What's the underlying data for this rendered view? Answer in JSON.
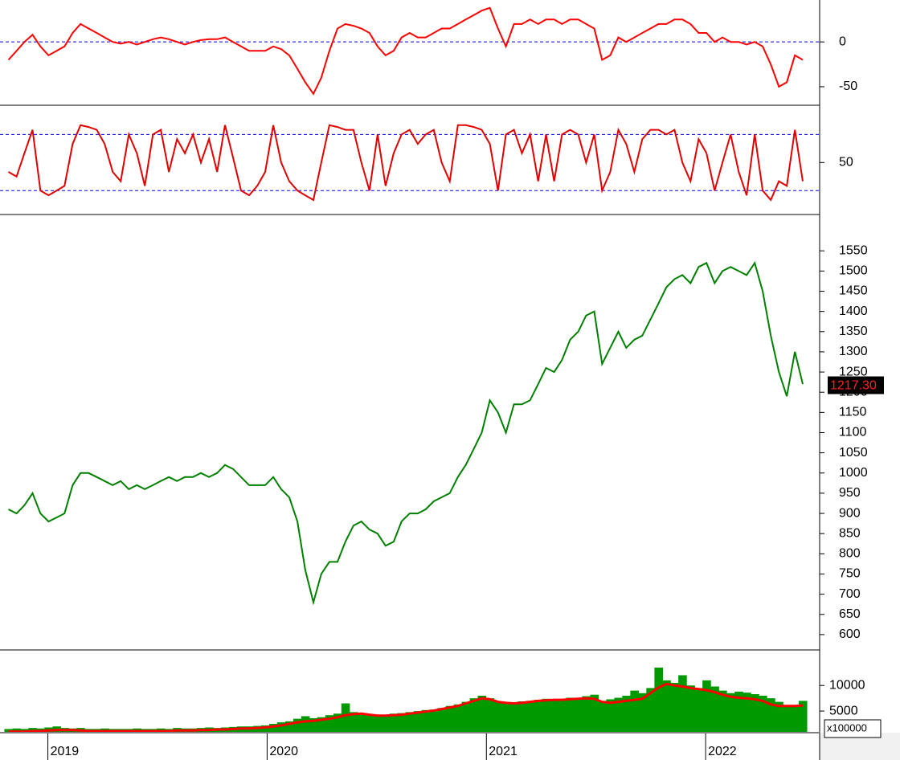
{
  "chart_data": [
    {
      "type": "line",
      "xlim": [
        2018.8,
        2022.52
      ],
      "ylim": [
        -68,
        45
      ],
      "yticks": [
        -50,
        0
      ],
      "hlines": [
        0
      ],
      "hline_color": "#0000ff",
      "x": [
        2018.82,
        2018.857,
        2018.893,
        2018.93,
        2018.966,
        2019.003,
        2019.04,
        2019.076,
        2019.113,
        2019.149,
        2019.186,
        2019.223,
        2019.259,
        2019.296,
        2019.332,
        2019.369,
        2019.406,
        2019.442,
        2019.479,
        2019.515,
        2019.552,
        2019.589,
        2019.625,
        2019.662,
        2019.698,
        2019.735,
        2019.772,
        2019.808,
        2019.845,
        2019.881,
        2019.918,
        2019.955,
        2019.991,
        2020.028,
        2020.064,
        2020.101,
        2020.138,
        2020.174,
        2020.211,
        2020.247,
        2020.284,
        2020.321,
        2020.357,
        2020.394,
        2020.43,
        2020.467,
        2020.504,
        2020.54,
        2020.577,
        2020.613,
        2020.65,
        2020.687,
        2020.723,
        2020.76,
        2020.796,
        2020.833,
        2020.87,
        2020.906,
        2020.943,
        2020.979,
        2021.016,
        2021.053,
        2021.089,
        2021.126,
        2021.162,
        2021.199,
        2021.236,
        2021.272,
        2021.309,
        2021.345,
        2021.382,
        2021.419,
        2021.455,
        2021.492,
        2021.528,
        2021.565,
        2021.602,
        2021.638,
        2021.675,
        2021.711,
        2021.748,
        2021.785,
        2021.821,
        2021.858,
        2021.894,
        2021.931,
        2021.968,
        2022.004,
        2022.041,
        2022.077,
        2022.114,
        2022.151,
        2022.187,
        2022.224,
        2022.26,
        2022.297,
        2022.334,
        2022.37,
        2022.407,
        2022.443
      ],
      "series": [
        {
          "color": "#ff0000",
          "values": [
            -20,
            -10,
            0,
            8,
            -5,
            -15,
            -10,
            -5,
            10,
            20,
            15,
            10,
            5,
            0,
            -2,
            0,
            -3,
            0,
            3,
            5,
            3,
            0,
            -3,
            0,
            2,
            3,
            3,
            5,
            0,
            -5,
            -10,
            -10,
            -10,
            -5,
            -8,
            -15,
            -30,
            -45,
            -58,
            -40,
            -10,
            15,
            20,
            18,
            15,
            10,
            -5,
            -15,
            -10,
            5,
            10,
            5,
            5,
            10,
            15,
            15,
            20,
            25,
            30,
            35,
            38,
            15,
            -5,
            20,
            20,
            25,
            20,
            25,
            25,
            20,
            25,
            25,
            20,
            15,
            -20,
            -15,
            5,
            0,
            5,
            10,
            15,
            20,
            20,
            25,
            25,
            20,
            10,
            10,
            0,
            5,
            0,
            0,
            -3,
            0,
            -5,
            -25,
            -50,
            -45,
            -15,
            -20
          ]
        }
      ]
    },
    {
      "type": "line",
      "xlim": [
        2018.8,
        2022.52
      ],
      "ylim": [
        -3,
        107
      ],
      "yticks": [
        50
      ],
      "hlines": [
        20,
        80
      ],
      "hline_color": "#0000ff",
      "x": [
        2018.82,
        2018.857,
        2018.893,
        2018.93,
        2018.966,
        2019.003,
        2019.04,
        2019.076,
        2019.113,
        2019.149,
        2019.186,
        2019.223,
        2019.259,
        2019.296,
        2019.332,
        2019.369,
        2019.406,
        2019.442,
        2019.479,
        2019.515,
        2019.552,
        2019.589,
        2019.625,
        2019.662,
        2019.698,
        2019.735,
        2019.772,
        2019.808,
        2019.845,
        2019.881,
        2019.918,
        2019.955,
        2019.991,
        2020.028,
        2020.064,
        2020.101,
        2020.138,
        2020.174,
        2020.211,
        2020.247,
        2020.284,
        2020.321,
        2020.357,
        2020.394,
        2020.43,
        2020.467,
        2020.504,
        2020.54,
        2020.577,
        2020.613,
        2020.65,
        2020.687,
        2020.723,
        2020.76,
        2020.796,
        2020.833,
        2020.87,
        2020.906,
        2020.943,
        2020.979,
        2021.016,
        2021.053,
        2021.089,
        2021.126,
        2021.162,
        2021.199,
        2021.236,
        2021.272,
        2021.309,
        2021.345,
        2021.382,
        2021.419,
        2021.455,
        2021.492,
        2021.528,
        2021.565,
        2021.602,
        2021.638,
        2021.675,
        2021.711,
        2021.748,
        2021.785,
        2021.821,
        2021.858,
        2021.894,
        2021.931,
        2021.968,
        2022.004,
        2022.041,
        2022.077,
        2022.114,
        2022.151,
        2022.187,
        2022.224,
        2022.26,
        2022.297,
        2022.334,
        2022.37,
        2022.407,
        2022.443
      ],
      "series": [
        {
          "color": "#e00000",
          "values": [
            40,
            35,
            60,
            85,
            20,
            15,
            20,
            25,
            70,
            90,
            88,
            85,
            70,
            40,
            30,
            80,
            60,
            25,
            80,
            85,
            40,
            75,
            60,
            80,
            50,
            75,
            40,
            90,
            55,
            20,
            15,
            25,
            40,
            90,
            50,
            30,
            20,
            15,
            10,
            50,
            90,
            88,
            85,
            85,
            50,
            20,
            80,
            25,
            60,
            80,
            85,
            70,
            80,
            85,
            50,
            30,
            90,
            90,
            88,
            85,
            70,
            20,
            80,
            85,
            60,
            80,
            30,
            80,
            30,
            80,
            85,
            80,
            50,
            80,
            20,
            40,
            85,
            70,
            40,
            75,
            85,
            85,
            80,
            85,
            50,
            30,
            75,
            60,
            20,
            50,
            80,
            40,
            15,
            80,
            20,
            10,
            30,
            25,
            85,
            30
          ]
        }
      ]
    },
    {
      "type": "line",
      "xlim": [
        2018.8,
        2022.52
      ],
      "ylim": [
        570,
        1630
      ],
      "yticks": [
        600,
        650,
        700,
        750,
        800,
        850,
        900,
        950,
        1000,
        1050,
        1100,
        1150,
        1200,
        1250,
        1300,
        1350,
        1400,
        1450,
        1500,
        1550
      ],
      "last_price": {
        "value": 1217.3,
        "label": "1217.30"
      },
      "x": [
        2018.82,
        2018.857,
        2018.893,
        2018.93,
        2018.966,
        2019.003,
        2019.04,
        2019.076,
        2019.113,
        2019.149,
        2019.186,
        2019.223,
        2019.259,
        2019.296,
        2019.332,
        2019.369,
        2019.406,
        2019.442,
        2019.479,
        2019.515,
        2019.552,
        2019.589,
        2019.625,
        2019.662,
        2019.698,
        2019.735,
        2019.772,
        2019.808,
        2019.845,
        2019.881,
        2019.918,
        2019.955,
        2019.991,
        2020.028,
        2020.064,
        2020.101,
        2020.138,
        2020.174,
        2020.211,
        2020.247,
        2020.284,
        2020.321,
        2020.357,
        2020.394,
        2020.43,
        2020.467,
        2020.504,
        2020.54,
        2020.577,
        2020.613,
        2020.65,
        2020.687,
        2020.723,
        2020.76,
        2020.796,
        2020.833,
        2020.87,
        2020.906,
        2020.943,
        2020.979,
        2021.016,
        2021.053,
        2021.089,
        2021.126,
        2021.162,
        2021.199,
        2021.236,
        2021.272,
        2021.309,
        2021.345,
        2021.382,
        2021.419,
        2021.455,
        2021.492,
        2021.528,
        2021.565,
        2021.602,
        2021.638,
        2021.675,
        2021.711,
        2021.748,
        2021.785,
        2021.821,
        2021.858,
        2021.894,
        2021.931,
        2021.968,
        2022.004,
        2022.041,
        2022.077,
        2022.114,
        2022.151,
        2022.187,
        2022.224,
        2022.26,
        2022.297,
        2022.334,
        2022.37,
        2022.407,
        2022.443
      ],
      "series": [
        {
          "color": "#008000",
          "values": [
            910,
            900,
            920,
            950,
            900,
            880,
            890,
            900,
            970,
            1000,
            1000,
            990,
            980,
            970,
            980,
            960,
            970,
            960,
            970,
            980,
            990,
            980,
            990,
            990,
            1000,
            990,
            1000,
            1020,
            1010,
            990,
            970,
            970,
            970,
            990,
            960,
            940,
            880,
            760,
            680,
            750,
            780,
            780,
            830,
            870,
            880,
            860,
            850,
            820,
            830,
            880,
            900,
            900,
            910,
            930,
            940,
            950,
            990,
            1020,
            1060,
            1100,
            1180,
            1150,
            1100,
            1170,
            1170,
            1180,
            1220,
            1260,
            1250,
            1280,
            1330,
            1350,
            1390,
            1400,
            1270,
            1310,
            1350,
            1310,
            1330,
            1340,
            1380,
            1420,
            1460,
            1480,
            1490,
            1470,
            1510,
            1520,
            1470,
            1500,
            1510,
            1500,
            1490,
            1520,
            1450,
            1340,
            1250,
            1190,
            1300,
            1220
          ]
        }
      ]
    },
    {
      "type": "bar",
      "xlim": [
        2018.8,
        2022.52
      ],
      "ylim": [
        780,
        16000
      ],
      "yticks": [
        5000,
        10000
      ],
      "xticks": [
        2019,
        2020,
        2021,
        2022
      ],
      "unit_label": "x100000",
      "x": [
        2018.82,
        2018.857,
        2018.893,
        2018.93,
        2018.966,
        2019.003,
        2019.04,
        2019.076,
        2019.113,
        2019.149,
        2019.186,
        2019.223,
        2019.259,
        2019.296,
        2019.332,
        2019.369,
        2019.406,
        2019.442,
        2019.479,
        2019.515,
        2019.552,
        2019.589,
        2019.625,
        2019.662,
        2019.698,
        2019.735,
        2019.772,
        2019.808,
        2019.845,
        2019.881,
        2019.918,
        2019.955,
        2019.991,
        2020.028,
        2020.064,
        2020.101,
        2020.138,
        2020.174,
        2020.211,
        2020.247,
        2020.284,
        2020.321,
        2020.357,
        2020.394,
        2020.43,
        2020.467,
        2020.504,
        2020.54,
        2020.577,
        2020.613,
        2020.65,
        2020.687,
        2020.723,
        2020.76,
        2020.796,
        2020.833,
        2020.87,
        2020.906,
        2020.943,
        2020.979,
        2021.016,
        2021.053,
        2021.089,
        2021.126,
        2021.162,
        2021.199,
        2021.236,
        2021.272,
        2021.309,
        2021.345,
        2021.382,
        2021.419,
        2021.455,
        2021.492,
        2021.528,
        2021.565,
        2021.602,
        2021.638,
        2021.675,
        2021.711,
        2021.748,
        2021.785,
        2021.821,
        2021.858,
        2021.894,
        2021.931,
        2021.968,
        2022.004,
        2022.041,
        2022.077,
        2022.114,
        2022.151,
        2022.187,
        2022.224,
        2022.26,
        2022.297,
        2022.334,
        2022.37,
        2022.407,
        2022.443
      ],
      "series": [
        {
          "kind": "bar",
          "color": "#009900",
          "values": [
            1500,
            1600,
            1500,
            1700,
            1600,
            1800,
            2000,
            1700,
            1600,
            1700,
            1500,
            1500,
            1600,
            1500,
            1500,
            1500,
            1600,
            1500,
            1500,
            1600,
            1500,
            1700,
            1600,
            1600,
            1700,
            1800,
            1700,
            1800,
            1900,
            2000,
            2000,
            2100,
            2200,
            2500,
            2800,
            3000,
            3500,
            4000,
            3600,
            3800,
            4200,
            4500,
            6500,
            4800,
            4500,
            4200,
            4000,
            4300,
            4500,
            4600,
            4800,
            5000,
            5200,
            5300,
            5600,
            6000,
            6300,
            6800,
            7500,
            8000,
            7500,
            6800,
            6500,
            6600,
            6900,
            7000,
            7200,
            7400,
            7100,
            7300,
            7600,
            7500,
            7900,
            8200,
            7000,
            7300,
            7600,
            8000,
            9000,
            8500,
            9500,
            13500,
            11000,
            10500,
            12000,
            10000,
            9500,
            11000,
            9800,
            9000,
            8500,
            8800,
            8600,
            8300,
            8000,
            7500,
            6800,
            6000,
            6200,
            7000
          ]
        },
        {
          "kind": "line",
          "color": "#ff0000",
          "values": [
            1000,
            1000,
            1000,
            1100,
            1100,
            1200,
            1300,
            1300,
            1300,
            1200,
            1100,
            1100,
            1100,
            1100,
            1100,
            1100,
            1100,
            1100,
            1100,
            1100,
            1100,
            1200,
            1200,
            1200,
            1300,
            1300,
            1400,
            1400,
            1500,
            1600,
            1600,
            1700,
            1800,
            2000,
            2200,
            2500,
            2800,
            3000,
            3100,
            3300,
            3500,
            3800,
            4200,
            4400,
            4500,
            4300,
            4100,
            4100,
            4200,
            4300,
            4500,
            4700,
            4900,
            5100,
            5400,
            5700,
            6000,
            6500,
            7000,
            7500,
            7300,
            6800,
            6600,
            6500,
            6600,
            6800,
            7000,
            7100,
            7200,
            7200,
            7300,
            7400,
            7500,
            7400,
            6800,
            6600,
            6800,
            7000,
            7200,
            7400,
            8500,
            9600,
            10300,
            10000,
            9800,
            9500,
            9300,
            9100,
            8700,
            8200,
            7800,
            7600,
            7500,
            7300,
            7000,
            6300,
            6000,
            6000,
            6000,
            6100
          ]
        }
      ]
    }
  ]
}
